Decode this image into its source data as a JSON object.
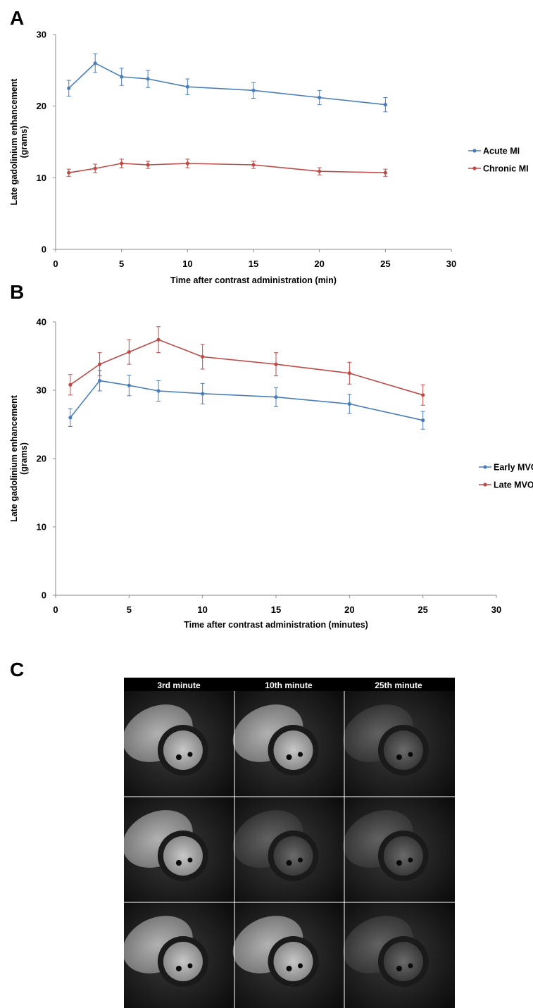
{
  "panels": {
    "a": "A",
    "b": "B",
    "c": "C"
  },
  "chart_data": [
    {
      "type": "line",
      "panel": "A",
      "title": "",
      "xlabel": "Time after contrast administration (min)",
      "ylabel": "Late gadolinium enhancement (grams)",
      "ylabel_lines": [
        "Late gadolinium enhancement",
        "(grams)"
      ],
      "xlim": [
        0,
        30
      ],
      "ylim": [
        0,
        30
      ],
      "xticks": [
        0,
        5,
        10,
        15,
        20,
        25,
        30
      ],
      "yticks": [
        0,
        10,
        20,
        30
      ],
      "x": [
        1,
        3,
        5,
        7,
        10,
        15,
        20,
        25
      ],
      "grid": false,
      "legend": "right",
      "series": [
        {
          "name": "Acute MI",
          "color": "#4a7ebb",
          "values": [
            22.5,
            26.0,
            24.1,
            23.8,
            22.7,
            22.2,
            21.2,
            20.2
          ],
          "errors": [
            1.1,
            1.3,
            1.2,
            1.2,
            1.1,
            1.1,
            1.0,
            1.0
          ]
        },
        {
          "name": "Chronic MI",
          "color": "#be4b48",
          "values": [
            10.7,
            11.3,
            12.0,
            11.8,
            12.0,
            11.8,
            10.9,
            10.7
          ],
          "errors": [
            0.5,
            0.6,
            0.6,
            0.5,
            0.6,
            0.5,
            0.5,
            0.5
          ]
        }
      ]
    },
    {
      "type": "line",
      "panel": "B",
      "title": "",
      "xlabel": "Time after contrast administration (minutes)",
      "ylabel": "Late gadolinium enhancement (grams)",
      "ylabel_lines": [
        "Late gadolinium enhancement",
        "(grams)"
      ],
      "xlim": [
        0,
        30
      ],
      "ylim": [
        0,
        40
      ],
      "xticks": [
        0,
        5,
        10,
        15,
        20,
        25,
        30
      ],
      "yticks": [
        0,
        10,
        20,
        30,
        40
      ],
      "x": [
        1,
        3,
        5,
        7,
        10,
        15,
        20,
        25
      ],
      "grid": false,
      "legend": "right",
      "series": [
        {
          "name": "Early MVO",
          "color": "#4a7ebb",
          "values": [
            26.0,
            31.4,
            30.7,
            29.9,
            29.5,
            29.0,
            28.0,
            25.6
          ],
          "errors": [
            1.3,
            1.5,
            1.5,
            1.5,
            1.5,
            1.4,
            1.4,
            1.3
          ]
        },
        {
          "name": "Late MVO",
          "color": "#be4b48",
          "values": [
            30.8,
            33.8,
            35.6,
            37.4,
            34.9,
            33.8,
            32.5,
            29.3
          ],
          "errors": [
            1.5,
            1.7,
            1.8,
            1.9,
            1.8,
            1.7,
            1.6,
            1.5
          ]
        }
      ]
    }
  ],
  "mri": {
    "headers": [
      "3rd minute",
      "10th minute",
      "25th minute"
    ]
  }
}
